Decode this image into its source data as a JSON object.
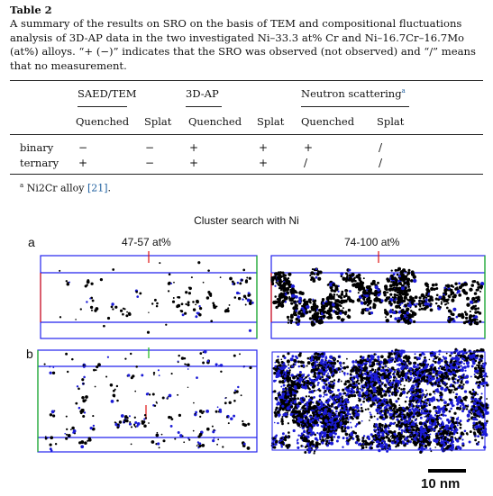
{
  "table": {
    "label": "Table 2",
    "caption": "A summary of the results on SRO on the basis of TEM and compositional fluctuations analysis of 3D-AP data in the two investigated Ni–33.3 at% Cr and Ni–16.7Cr–16.7Mo (at%) alloys. “+ (−)” indicates that the SRO was observed (not observed) and “/” means that no measurement.",
    "group_headers": [
      "SAED/TEM",
      "3D-AP",
      "Neutron scattering"
    ],
    "group_header_footnote_mark": "a",
    "sub_headers": [
      "Quenched",
      "Splat",
      "Quenched",
      "Splat",
      "Quenched",
      "Splat"
    ],
    "rows": [
      {
        "label": "binary",
        "cells": [
          "−",
          "−",
          "+",
          "+",
          "+",
          "/"
        ]
      },
      {
        "label": "ternary",
        "cells": [
          "+",
          "−",
          "+",
          "+",
          "/",
          "/"
        ]
      }
    ],
    "footnote": {
      "mark": "a",
      "text": "Ni2Cr alloy ",
      "ref": "[21]",
      "end": "."
    }
  },
  "figure": {
    "title": "Cluster search with Ni",
    "panels": [
      "a",
      "b"
    ],
    "column_labels": [
      "47-57 at%",
      "74-100 at%"
    ],
    "scale_bar_label": "10 nm",
    "colors": {
      "dots_dark": "#000000",
      "dots_blue": "#1b1bd6",
      "frame_blue": "#2222ee",
      "frame_red": "#e01010",
      "frame_green": "#18b818"
    }
  }
}
